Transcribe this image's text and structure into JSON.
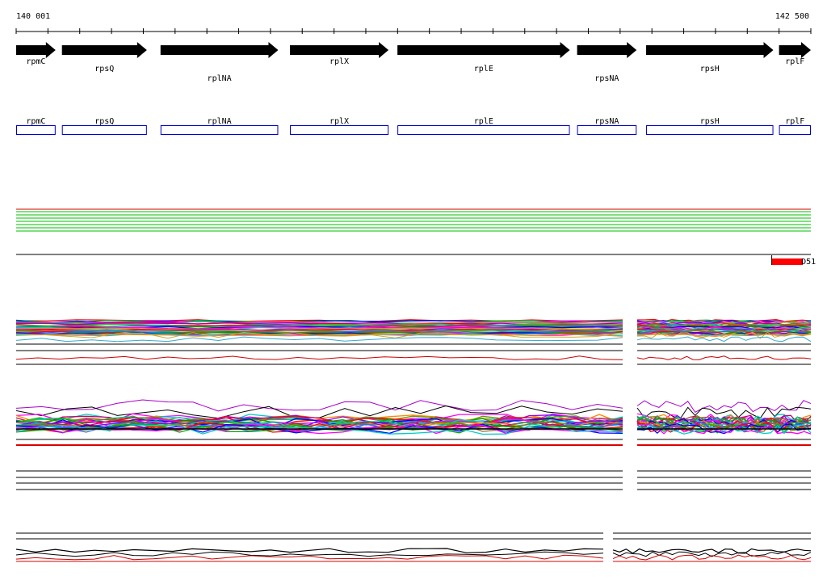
{
  "ruler": {
    "start_label": "140 001",
    "end_label": "142 500",
    "start_bp": 140001,
    "end_bp": 142500
  },
  "genes": [
    {
      "name": "rpmC",
      "start": 140001,
      "end": 140125,
      "label_row": 0
    },
    {
      "name": "rpsQ",
      "start": 140145,
      "end": 140412,
      "label_row": 1
    },
    {
      "name": "rplNA",
      "start": 140455,
      "end": 140825,
      "label_row": 2
    },
    {
      "name": "rplX",
      "start": 140862,
      "end": 141172,
      "label_row": 0
    },
    {
      "name": "rplE",
      "start": 141200,
      "end": 141742,
      "label_row": 1
    },
    {
      "name": "rpsNA",
      "start": 141765,
      "end": 141952,
      "label_row": 2
    },
    {
      "name": "rpsH",
      "start": 141982,
      "end": 142382,
      "label_row": 1
    },
    {
      "name": "rplF",
      "start": 142400,
      "end": 142500,
      "label_row": 0
    }
  ],
  "feature_marker": {
    "label": "D51",
    "color": "#ff0000",
    "start": 142377,
    "end": 142475
  },
  "colors": {
    "gene_arrow": "#000000",
    "gene_box": "#0000cc",
    "green_band": "#33cc33",
    "red_band": "#dd3333",
    "axis": "#000000"
  },
  "track_palette": [
    "#ff0000",
    "#00aa00",
    "#0000ff",
    "#ff00ff",
    "#00cccc",
    "#ff8800",
    "#8800ff",
    "#cc0066",
    "#669900",
    "#00cc66",
    "#996633",
    "#3366ff"
  ]
}
